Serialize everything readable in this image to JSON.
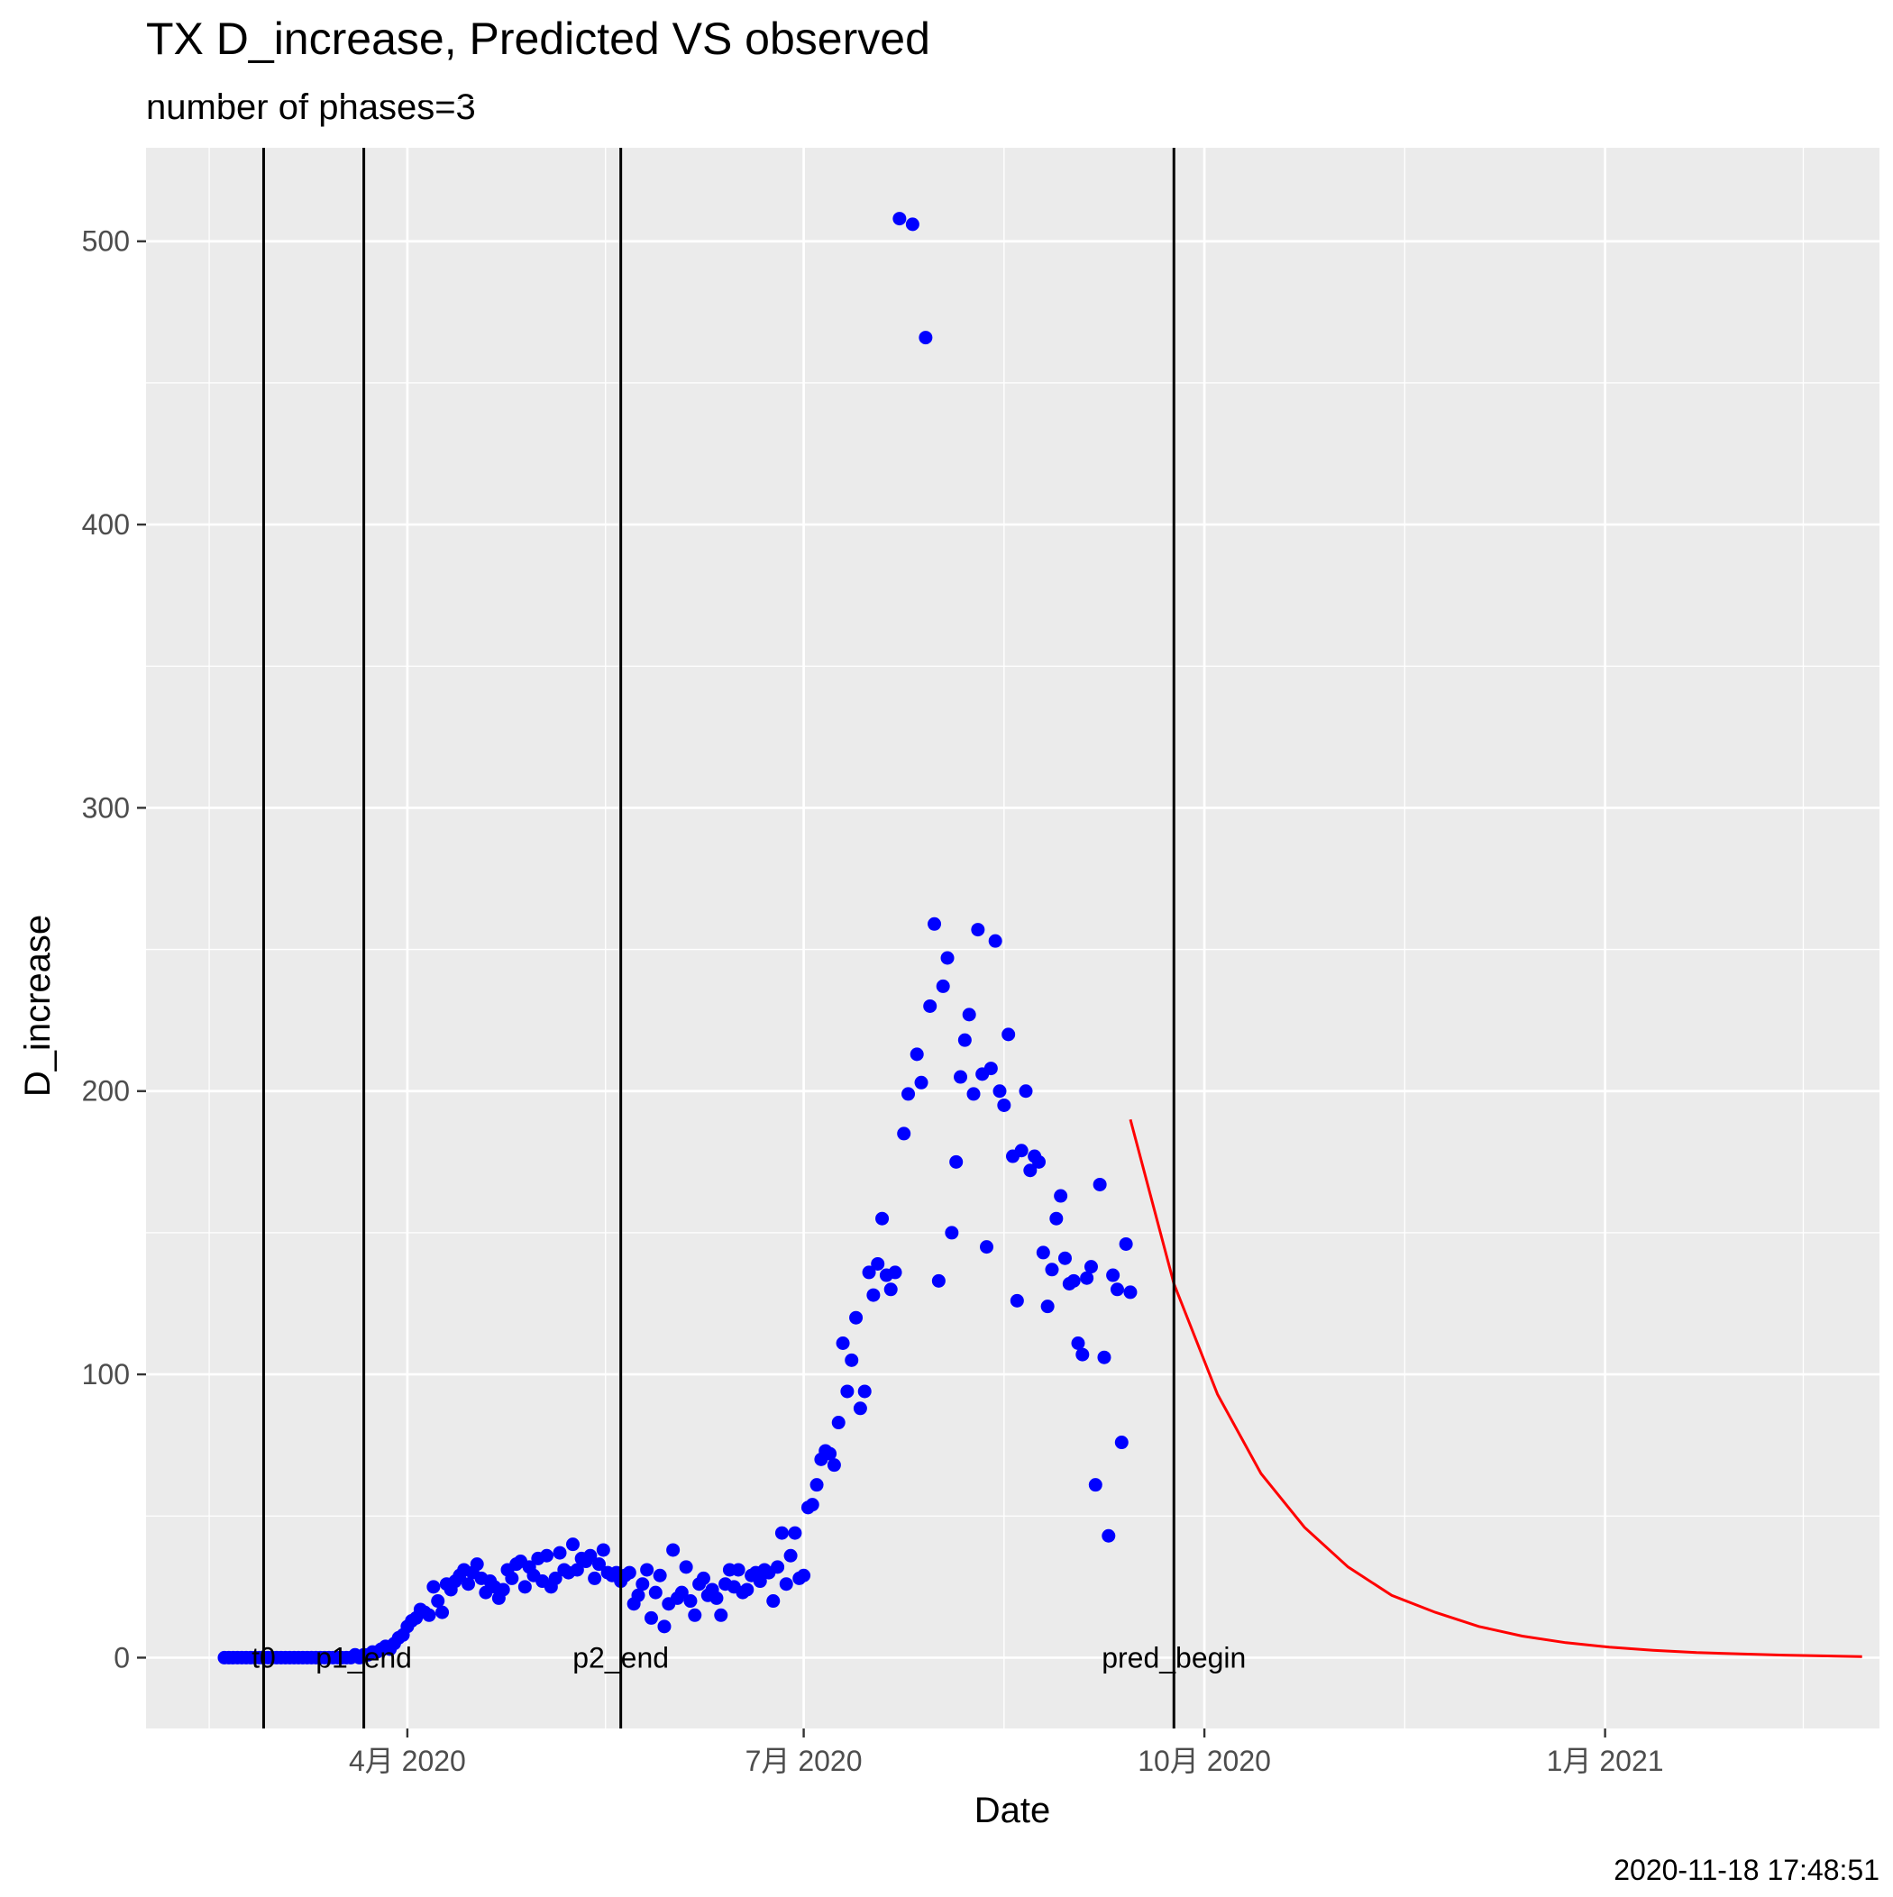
{
  "chart_data": {
    "type": "scatter",
    "title": "TX D_increase, Predicted VS observed",
    "subtitle": "number of phases=3",
    "xlabel": "Date",
    "ylabel": "D_increase",
    "timestamp": "2020-11-18 17:48:51",
    "xlim": [
      "2020-02-01",
      "2021-03-05"
    ],
    "ylim": [
      -25,
      533
    ],
    "x_ticks": [
      {
        "date": "2020-04-01",
        "label": "4月 2020"
      },
      {
        "date": "2020-07-01",
        "label": "7月 2020"
      },
      {
        "date": "2020-10-01",
        "label": "10月 2020"
      },
      {
        "date": "2021-01-01",
        "label": "1月 2021"
      }
    ],
    "y_ticks": [
      {
        "value": 0,
        "label": "0"
      },
      {
        "value": 100,
        "label": "100"
      },
      {
        "value": 200,
        "label": "200"
      },
      {
        "value": 300,
        "label": "300"
      },
      {
        "value": 400,
        "label": "400"
      },
      {
        "value": 500,
        "label": "500"
      }
    ],
    "grid": true,
    "colors": {
      "panel": "#ebebeb",
      "grid": "#ffffff",
      "observed": "#0000ff",
      "predicted": "#ff0000",
      "phase_line": "#000000"
    },
    "phase_lines": [
      {
        "date": "2020-02-28",
        "label": "t0"
      },
      {
        "date": "2020-03-22",
        "label": "p1_end"
      },
      {
        "date": "2020-05-20",
        "label": "p2_end"
      },
      {
        "date": "2020-09-24",
        "label": "pred_begin"
      }
    ],
    "series": [
      {
        "kind": "observed",
        "points": [
          [
            "2020-02-19",
            0
          ],
          [
            "2020-02-20",
            0
          ],
          [
            "2020-02-21",
            0
          ],
          [
            "2020-02-22",
            0
          ],
          [
            "2020-02-23",
            0
          ],
          [
            "2020-02-24",
            0
          ],
          [
            "2020-02-25",
            0
          ],
          [
            "2020-02-26",
            0
          ],
          [
            "2020-02-27",
            0
          ],
          [
            "2020-02-28",
            0
          ],
          [
            "2020-02-29",
            0
          ],
          [
            "2020-03-01",
            0
          ],
          [
            "2020-03-02",
            0
          ],
          [
            "2020-03-03",
            0
          ],
          [
            "2020-03-04",
            0
          ],
          [
            "2020-03-05",
            0
          ],
          [
            "2020-03-06",
            0
          ],
          [
            "2020-03-07",
            0
          ],
          [
            "2020-03-08",
            0
          ],
          [
            "2020-03-09",
            0
          ],
          [
            "2020-03-10",
            0
          ],
          [
            "2020-03-11",
            0
          ],
          [
            "2020-03-12",
            0
          ],
          [
            "2020-03-13",
            0
          ],
          [
            "2020-03-14",
            0
          ],
          [
            "2020-03-15",
            0
          ],
          [
            "2020-03-16",
            0
          ],
          [
            "2020-03-17",
            0
          ],
          [
            "2020-03-18",
            0
          ],
          [
            "2020-03-19",
            0
          ],
          [
            "2020-03-20",
            1
          ],
          [
            "2020-03-21",
            0
          ],
          [
            "2020-03-22",
            1
          ],
          [
            "2020-03-23",
            1
          ],
          [
            "2020-03-24",
            2
          ],
          [
            "2020-03-25",
            2
          ],
          [
            "2020-03-26",
            3
          ],
          [
            "2020-03-27",
            4
          ],
          [
            "2020-03-28",
            3
          ],
          [
            "2020-03-29",
            5
          ],
          [
            "2020-03-30",
            7
          ],
          [
            "2020-03-31",
            8
          ],
          [
            "2020-04-01",
            11
          ],
          [
            "2020-04-02",
            13
          ],
          [
            "2020-04-03",
            14
          ],
          [
            "2020-04-04",
            17
          ],
          [
            "2020-04-05",
            16
          ],
          [
            "2020-04-06",
            15
          ],
          [
            "2020-04-07",
            25
          ],
          [
            "2020-04-08",
            20
          ],
          [
            "2020-04-09",
            16
          ],
          [
            "2020-04-10",
            26
          ],
          [
            "2020-04-11",
            24
          ],
          [
            "2020-04-12",
            27
          ],
          [
            "2020-04-13",
            29
          ],
          [
            "2020-04-14",
            31
          ],
          [
            "2020-04-15",
            26
          ],
          [
            "2020-04-16",
            30
          ],
          [
            "2020-04-17",
            33
          ],
          [
            "2020-04-18",
            28
          ],
          [
            "2020-04-19",
            23
          ],
          [
            "2020-04-20",
            27
          ],
          [
            "2020-04-21",
            25
          ],
          [
            "2020-04-22",
            21
          ],
          [
            "2020-04-23",
            24
          ],
          [
            "2020-04-24",
            31
          ],
          [
            "2020-04-25",
            28
          ],
          [
            "2020-04-26",
            33
          ],
          [
            "2020-04-27",
            34
          ],
          [
            "2020-04-28",
            25
          ],
          [
            "2020-04-29",
            32
          ],
          [
            "2020-04-30",
            29
          ],
          [
            "2020-05-01",
            35
          ],
          [
            "2020-05-02",
            27
          ],
          [
            "2020-05-03",
            36
          ],
          [
            "2020-05-04",
            25
          ],
          [
            "2020-05-05",
            28
          ],
          [
            "2020-05-06",
            37
          ],
          [
            "2020-05-07",
            31
          ],
          [
            "2020-05-08",
            30
          ],
          [
            "2020-05-09",
            40
          ],
          [
            "2020-05-10",
            31
          ],
          [
            "2020-05-11",
            35
          ],
          [
            "2020-05-12",
            34
          ],
          [
            "2020-05-13",
            36
          ],
          [
            "2020-05-14",
            28
          ],
          [
            "2020-05-15",
            33
          ],
          [
            "2020-05-16",
            38
          ],
          [
            "2020-05-17",
            30
          ],
          [
            "2020-05-18",
            29
          ],
          [
            "2020-05-19",
            30
          ],
          [
            "2020-05-20",
            27
          ],
          [
            "2020-05-21",
            29
          ],
          [
            "2020-05-22",
            30
          ],
          [
            "2020-05-23",
            19
          ],
          [
            "2020-05-24",
            22
          ],
          [
            "2020-05-25",
            26
          ],
          [
            "2020-05-26",
            31
          ],
          [
            "2020-05-27",
            14
          ],
          [
            "2020-05-28",
            23
          ],
          [
            "2020-05-29",
            29
          ],
          [
            "2020-05-30",
            11
          ],
          [
            "2020-05-31",
            19
          ],
          [
            "2020-06-01",
            38
          ],
          [
            "2020-06-02",
            21
          ],
          [
            "2020-06-03",
            23
          ],
          [
            "2020-06-04",
            32
          ],
          [
            "2020-06-05",
            20
          ],
          [
            "2020-06-06",
            15
          ],
          [
            "2020-06-07",
            26
          ],
          [
            "2020-06-08",
            28
          ],
          [
            "2020-06-09",
            22
          ],
          [
            "2020-06-10",
            24
          ],
          [
            "2020-06-11",
            21
          ],
          [
            "2020-06-12",
            15
          ],
          [
            "2020-06-13",
            26
          ],
          [
            "2020-06-14",
            31
          ],
          [
            "2020-06-15",
            25
          ],
          [
            "2020-06-16",
            31
          ],
          [
            "2020-06-17",
            23
          ],
          [
            "2020-06-18",
            24
          ],
          [
            "2020-06-19",
            29
          ],
          [
            "2020-06-20",
            30
          ],
          [
            "2020-06-21",
            27
          ],
          [
            "2020-06-22",
            31
          ],
          [
            "2020-06-23",
            30
          ],
          [
            "2020-06-24",
            20
          ],
          [
            "2020-06-25",
            32
          ],
          [
            "2020-06-26",
            44
          ],
          [
            "2020-06-27",
            26
          ],
          [
            "2020-06-28",
            36
          ],
          [
            "2020-06-29",
            44
          ],
          [
            "2020-06-30",
            28
          ],
          [
            "2020-07-01",
            29
          ],
          [
            "2020-07-02",
            53
          ],
          [
            "2020-07-03",
            54
          ],
          [
            "2020-07-04",
            61
          ],
          [
            "2020-07-05",
            70
          ],
          [
            "2020-07-06",
            73
          ],
          [
            "2020-07-07",
            72
          ],
          [
            "2020-07-08",
            68
          ],
          [
            "2020-07-09",
            83
          ],
          [
            "2020-07-10",
            111
          ],
          [
            "2020-07-11",
            94
          ],
          [
            "2020-07-12",
            105
          ],
          [
            "2020-07-13",
            120
          ],
          [
            "2020-07-14",
            88
          ],
          [
            "2020-07-15",
            94
          ],
          [
            "2020-07-16",
            136
          ],
          [
            "2020-07-17",
            128
          ],
          [
            "2020-07-18",
            139
          ],
          [
            "2020-07-19",
            155
          ],
          [
            "2020-07-20",
            135
          ],
          [
            "2020-07-21",
            130
          ],
          [
            "2020-07-22",
            136
          ],
          [
            "2020-07-23",
            508
          ],
          [
            "2020-07-24",
            185
          ],
          [
            "2020-07-25",
            199
          ],
          [
            "2020-07-26",
            506
          ],
          [
            "2020-07-27",
            213
          ],
          [
            "2020-07-28",
            203
          ],
          [
            "2020-07-29",
            466
          ],
          [
            "2020-07-30",
            230
          ],
          [
            "2020-07-31",
            259
          ],
          [
            "2020-08-01",
            133
          ],
          [
            "2020-08-02",
            237
          ],
          [
            "2020-08-03",
            247
          ],
          [
            "2020-08-04",
            150
          ],
          [
            "2020-08-05",
            175
          ],
          [
            "2020-08-06",
            205
          ],
          [
            "2020-08-07",
            218
          ],
          [
            "2020-08-08",
            227
          ],
          [
            "2020-08-09",
            199
          ],
          [
            "2020-08-10",
            257
          ],
          [
            "2020-08-11",
            206
          ],
          [
            "2020-08-12",
            145
          ],
          [
            "2020-08-13",
            208
          ],
          [
            "2020-08-14",
            253
          ],
          [
            "2020-08-15",
            200
          ],
          [
            "2020-08-16",
            195
          ],
          [
            "2020-08-17",
            220
          ],
          [
            "2020-08-18",
            177
          ],
          [
            "2020-08-19",
            126
          ],
          [
            "2020-08-20",
            179
          ],
          [
            "2020-08-21",
            200
          ],
          [
            "2020-08-22",
            172
          ],
          [
            "2020-08-23",
            177
          ],
          [
            "2020-08-24",
            175
          ],
          [
            "2020-08-25",
            143
          ],
          [
            "2020-08-26",
            124
          ],
          [
            "2020-08-27",
            137
          ],
          [
            "2020-08-28",
            155
          ],
          [
            "2020-08-29",
            163
          ],
          [
            "2020-08-30",
            141
          ],
          [
            "2020-08-31",
            132
          ],
          [
            "2020-09-01",
            133
          ],
          [
            "2020-09-02",
            111
          ],
          [
            "2020-09-03",
            107
          ],
          [
            "2020-09-04",
            134
          ],
          [
            "2020-09-05",
            138
          ],
          [
            "2020-09-06",
            61
          ],
          [
            "2020-09-07",
            167
          ],
          [
            "2020-09-08",
            106
          ],
          [
            "2020-09-09",
            43
          ],
          [
            "2020-09-10",
            135
          ],
          [
            "2020-09-11",
            130
          ],
          [
            "2020-09-12",
            76
          ],
          [
            "2020-09-13",
            146
          ],
          [
            "2020-09-14",
            129
          ]
        ]
      },
      {
        "kind": "predicted",
        "points": [
          [
            "2020-09-14",
            190
          ],
          [
            "2020-09-24",
            132
          ],
          [
            "2020-10-04",
            93
          ],
          [
            "2020-10-14",
            65
          ],
          [
            "2020-10-24",
            46
          ],
          [
            "2020-11-03",
            32
          ],
          [
            "2020-11-13",
            22
          ],
          [
            "2020-11-23",
            16
          ],
          [
            "2020-12-03",
            11
          ],
          [
            "2020-12-13",
            7.6
          ],
          [
            "2020-12-23",
            5.3
          ],
          [
            "2021-01-02",
            3.7
          ],
          [
            "2021-01-12",
            2.6
          ],
          [
            "2021-01-22",
            1.8
          ],
          [
            "2021-02-01",
            1.3
          ],
          [
            "2021-02-11",
            0.9
          ],
          [
            "2021-02-21",
            0.6
          ],
          [
            "2021-03-01",
            0.4
          ]
        ]
      }
    ]
  }
}
